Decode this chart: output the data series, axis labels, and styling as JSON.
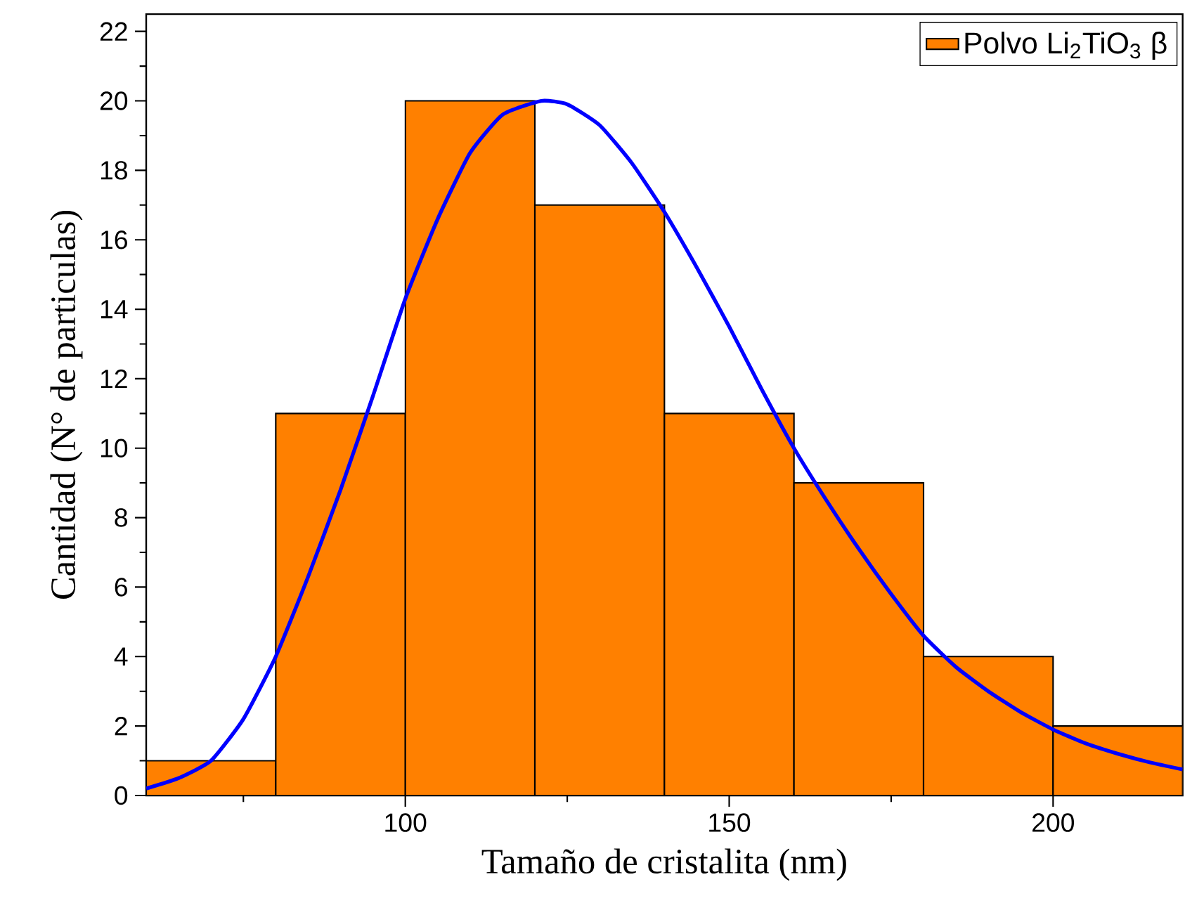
{
  "chart_data": {
    "type": "histogram",
    "xlabel": "Tamaño de cristalita (nm)",
    "ylabel": "Cantidad (N° de particulas)",
    "series": [
      {
        "name": "Polvo Li$_{2}$TiO$_{3}$ β",
        "color": "#ff8000",
        "bins": [
          60,
          80,
          100,
          120,
          140,
          160,
          180,
          200,
          220
        ],
        "values": [
          1,
          11,
          20,
          17,
          11,
          9,
          4,
          2
        ]
      },
      {
        "type": "line",
        "color": "#0000ff",
        "x": [
          60,
          65,
          70,
          75,
          80,
          85,
          90,
          95,
          100,
          105,
          110,
          115,
          121,
          125,
          130,
          135,
          140,
          145,
          150,
          155,
          160,
          165,
          170,
          175,
          180,
          185,
          190,
          195,
          200,
          205,
          210,
          215,
          220
        ],
        "values": [
          0.2,
          0.5,
          1.0,
          2.2,
          4.0,
          6.3,
          8.8,
          11.5,
          14.3,
          16.6,
          18.5,
          19.6,
          20.0,
          19.9,
          19.3,
          18.2,
          16.8,
          15.2,
          13.5,
          11.7,
          10.0,
          8.5,
          7.1,
          5.8,
          4.6,
          3.7,
          3.0,
          2.4,
          1.9,
          1.5,
          1.2,
          0.95,
          0.75
        ]
      }
    ],
    "xlim": [
      60,
      220
    ],
    "ylim": [
      0,
      22.5
    ],
    "xticks": [
      {
        "value": 75,
        "label": null
      },
      100,
      {
        "value": 125,
        "label": null
      },
      150,
      {
        "value": 175,
        "label": null
      },
      200
    ],
    "yticks": [
      0,
      {
        "value": 1,
        "label": null
      },
      2,
      {
        "value": 3,
        "label": null
      },
      4,
      {
        "value": 5,
        "label": null
      },
      6,
      {
        "value": 7,
        "label": null
      },
      8,
      {
        "value": 9,
        "label": null
      },
      10,
      {
        "value": 11,
        "label": null
      },
      12,
      {
        "value": 13,
        "label": null
      },
      14,
      {
        "value": 15,
        "label": null
      },
      16,
      {
        "value": 17,
        "label": null
      },
      18,
      {
        "value": 19,
        "label": null
      },
      20,
      {
        "value": 21,
        "label": null
      },
      22
    ],
    "legend": "top right"
  }
}
